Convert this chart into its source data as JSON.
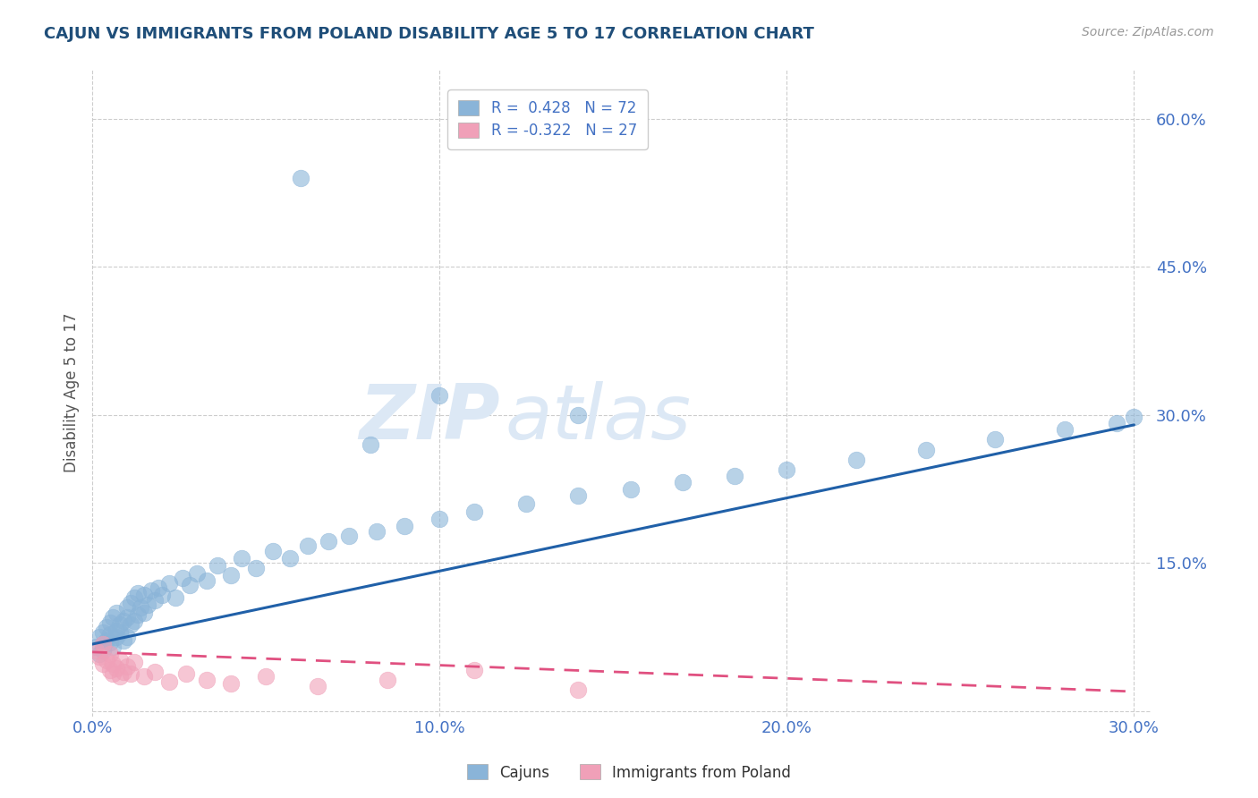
{
  "title": "CAJUN VS IMMIGRANTS FROM POLAND DISABILITY AGE 5 TO 17 CORRELATION CHART",
  "source": "Source: ZipAtlas.com",
  "ylabel": "Disability Age 5 to 17",
  "xlim": [
    0.0,
    0.305
  ],
  "ylim": [
    -0.005,
    0.65
  ],
  "x_ticks": [
    0.0,
    0.1,
    0.2,
    0.3
  ],
  "x_tick_labels": [
    "0.0%",
    "10.0%",
    "20.0%",
    "30.0%"
  ],
  "y_ticks": [
    0.0,
    0.15,
    0.3,
    0.45,
    0.6
  ],
  "y_tick_labels": [
    "",
    "15.0%",
    "30.0%",
    "45.0%",
    "60.0%"
  ],
  "legend1_label": "R =  0.428   N = 72",
  "legend2_label": "R = -0.322   N = 27",
  "cajun_dot_color": "#8ab4d8",
  "poland_dot_color": "#f0a0b8",
  "trend_cajun_color": "#2060a8",
  "trend_poland_color": "#e05080",
  "background_color": "#ffffff",
  "grid_color": "#c8c8c8",
  "title_color": "#1f4e79",
  "axis_label_color": "#555555",
  "tick_color": "#4472c4",
  "watermark_color": "#dce8f5",
  "cajun_x": [
    0.001,
    0.002,
    0.002,
    0.003,
    0.003,
    0.003,
    0.004,
    0.004,
    0.005,
    0.005,
    0.005,
    0.006,
    0.006,
    0.007,
    0.007,
    0.007,
    0.008,
    0.008,
    0.009,
    0.009,
    0.01,
    0.01,
    0.01,
    0.011,
    0.011,
    0.012,
    0.012,
    0.013,
    0.013,
    0.014,
    0.015,
    0.015,
    0.016,
    0.017,
    0.018,
    0.019,
    0.02,
    0.022,
    0.024,
    0.026,
    0.028,
    0.03,
    0.033,
    0.036,
    0.04,
    0.043,
    0.047,
    0.052,
    0.057,
    0.062,
    0.068,
    0.074,
    0.082,
    0.09,
    0.1,
    0.11,
    0.125,
    0.14,
    0.155,
    0.17,
    0.185,
    0.2,
    0.22,
    0.24,
    0.26,
    0.28,
    0.295,
    0.3,
    0.14,
    0.08,
    0.1,
    0.06
  ],
  "cajun_y": [
    0.065,
    0.058,
    0.075,
    0.068,
    0.08,
    0.062,
    0.072,
    0.085,
    0.07,
    0.078,
    0.09,
    0.065,
    0.095,
    0.075,
    0.082,
    0.1,
    0.08,
    0.088,
    0.072,
    0.092,
    0.095,
    0.105,
    0.075,
    0.088,
    0.11,
    0.092,
    0.115,
    0.098,
    0.12,
    0.105,
    0.1,
    0.118,
    0.108,
    0.122,
    0.112,
    0.125,
    0.118,
    0.13,
    0.115,
    0.135,
    0.128,
    0.14,
    0.132,
    0.148,
    0.138,
    0.155,
    0.145,
    0.162,
    0.155,
    0.168,
    0.172,
    0.178,
    0.182,
    0.188,
    0.195,
    0.202,
    0.21,
    0.218,
    0.225,
    0.232,
    0.238,
    0.245,
    0.255,
    0.265,
    0.275,
    0.285,
    0.292,
    0.298,
    0.3,
    0.27,
    0.32,
    0.54
  ],
  "poland_x": [
    0.001,
    0.002,
    0.003,
    0.003,
    0.004,
    0.005,
    0.005,
    0.006,
    0.006,
    0.007,
    0.008,
    0.008,
    0.009,
    0.01,
    0.011,
    0.012,
    0.015,
    0.018,
    0.022,
    0.027,
    0.033,
    0.04,
    0.05,
    0.065,
    0.085,
    0.11,
    0.14
  ],
  "poland_y": [
    0.062,
    0.055,
    0.048,
    0.068,
    0.052,
    0.058,
    0.042,
    0.048,
    0.038,
    0.044,
    0.052,
    0.035,
    0.04,
    0.045,
    0.038,
    0.05,
    0.035,
    0.04,
    0.03,
    0.038,
    0.032,
    0.028,
    0.035,
    0.025,
    0.032,
    0.042,
    0.022
  ],
  "trend_cajun_x0": 0.0,
  "trend_cajun_y0": 0.068,
  "trend_cajun_x1": 0.3,
  "trend_cajun_y1": 0.29,
  "trend_poland_x0": 0.0,
  "trend_poland_y0": 0.06,
  "trend_poland_x1": 0.3,
  "trend_poland_y1": 0.02
}
